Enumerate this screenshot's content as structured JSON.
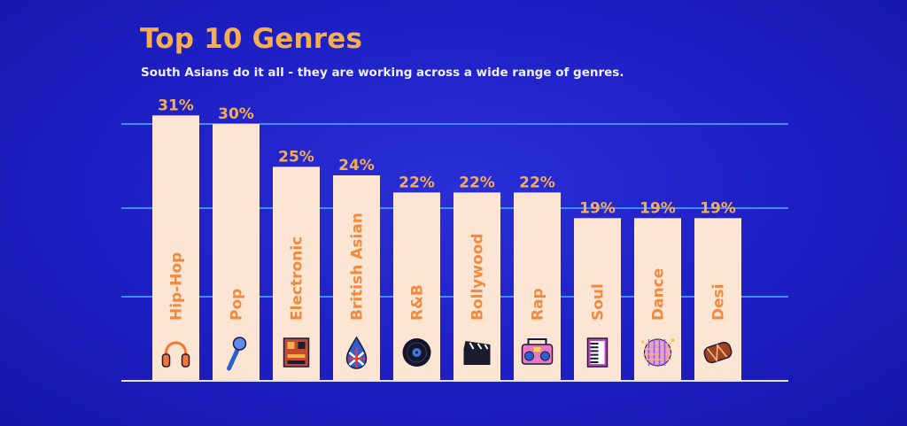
{
  "title": "Top 10 Genres",
  "subtitle": "South Asians do it all - they are working across a wide range of genres.",
  "colors": {
    "background": "#1d1fc4",
    "bar": "#fde5d3",
    "value_label": "#f5ad52",
    "bar_label": "#f18a3f",
    "gridline": "#3f8cff",
    "title": "#f5ad52",
    "subtitle": "#eef0ff"
  },
  "chart_data": {
    "type": "bar",
    "title": "Top 10 Genres",
    "subtitle": "South Asians do it all - they are working across a wide range of genres.",
    "categories": [
      "Hip-Hop",
      "Pop",
      "Electronic",
      "British Asian",
      "R&B",
      "Bollywood",
      "Rap",
      "Soul",
      "Dance",
      "Desi"
    ],
    "values": [
      31,
      30,
      25,
      24,
      22,
      22,
      22,
      19,
      19,
      19
    ],
    "value_labels": [
      "31%",
      "30%",
      "25%",
      "24%",
      "22%",
      "22%",
      "22%",
      "19%",
      "19%",
      "19%"
    ],
    "icons": [
      "headphones-icon",
      "microphone-icon",
      "synthesizer-icon",
      "union-jack-drop-icon",
      "vinyl-record-icon",
      "clapperboard-icon",
      "boombox-icon",
      "keyboard-icon",
      "disco-ball-icon",
      "dhol-drum-icon"
    ],
    "units": "%",
    "ylim": [
      0,
      30
    ],
    "grid": true,
    "xlabel": "",
    "ylabel": ""
  }
}
